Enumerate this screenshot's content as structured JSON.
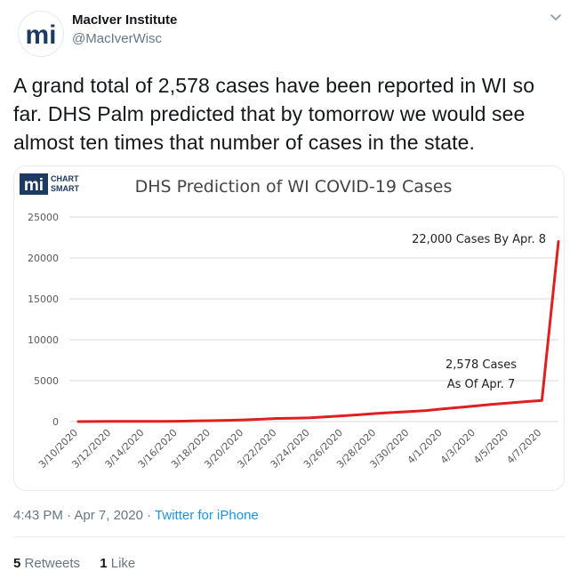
{
  "author": {
    "display_name": "MacIver Institute",
    "handle": "@MacIverWisc",
    "avatar_text": "mi"
  },
  "tweet": {
    "text": "A grand total of 2,578 cases have been reported in WI so far. DHS Palm predicted that by tomorrow we would see almost ten times that number of cases in the state."
  },
  "card": {
    "logo_mark": "mi",
    "logo_line1": "CHART",
    "logo_line2": "SMART"
  },
  "chart_data": {
    "type": "line",
    "title": "DHS Prediction of WI COVID-19 Cases",
    "xlabel": "",
    "ylabel": "",
    "ylim": [
      0,
      25000
    ],
    "y_ticks": [
      0,
      5000,
      10000,
      15000,
      20000,
      25000
    ],
    "grid": true,
    "categories": [
      "3/10/2020",
      "3/11/2020",
      "3/12/2020",
      "3/13/2020",
      "3/14/2020",
      "3/15/2020",
      "3/16/2020",
      "3/17/2020",
      "3/18/2020",
      "3/19/2020",
      "3/20/2020",
      "3/21/2020",
      "3/22/2020",
      "3/23/2020",
      "3/24/2020",
      "3/25/2020",
      "3/26/2020",
      "3/27/2020",
      "3/28/2020",
      "3/29/2020",
      "3/30/2020",
      "3/31/2020",
      "4/1/2020",
      "4/2/2020",
      "4/3/2020",
      "4/4/2020",
      "4/5/2020",
      "4/6/2020",
      "4/7/2020",
      "4/8/2020"
    ],
    "x_tick_labels": [
      "3/10/2020",
      "3/12/2020",
      "3/14/2020",
      "3/16/2020",
      "3/18/2020",
      "3/20/2020",
      "3/22/2020",
      "3/24/2020",
      "3/26/2020",
      "3/28/2020",
      "3/30/2020",
      "4/1/2020",
      "4/3/2020",
      "4/5/2020",
      "4/7/2020"
    ],
    "series": [
      {
        "color": "#e02020",
        "values": [
          3,
          8,
          19,
          21,
          32,
          33,
          47,
          72,
          106,
          155,
          206,
          281,
          381,
          416,
          457,
          585,
          707,
          842,
          989,
          1112,
          1221,
          1351,
          1550,
          1730,
          1916,
          2112,
          2267,
          2440,
          2578,
          22000
        ]
      }
    ],
    "annotations": [
      {
        "text": "22,000 Cases By Apr. 8"
      },
      {
        "line1": "2,578 Cases",
        "line2": "As Of Apr. 7"
      }
    ]
  },
  "meta": {
    "time": "4:43 PM",
    "separator1": "·",
    "date": "Apr 7, 2020",
    "separator2": "·",
    "source": "Twitter for iPhone"
  },
  "stats": {
    "retweets_count": "5",
    "retweets_label": "Retweets",
    "likes_count": "1",
    "likes_label": "Like"
  },
  "colors": {
    "line": "#e02020",
    "link": "#1b95e0",
    "muted": "#657786",
    "brand": "#1d3a63"
  },
  "icons": {
    "caret": "chevron-down-icon"
  }
}
